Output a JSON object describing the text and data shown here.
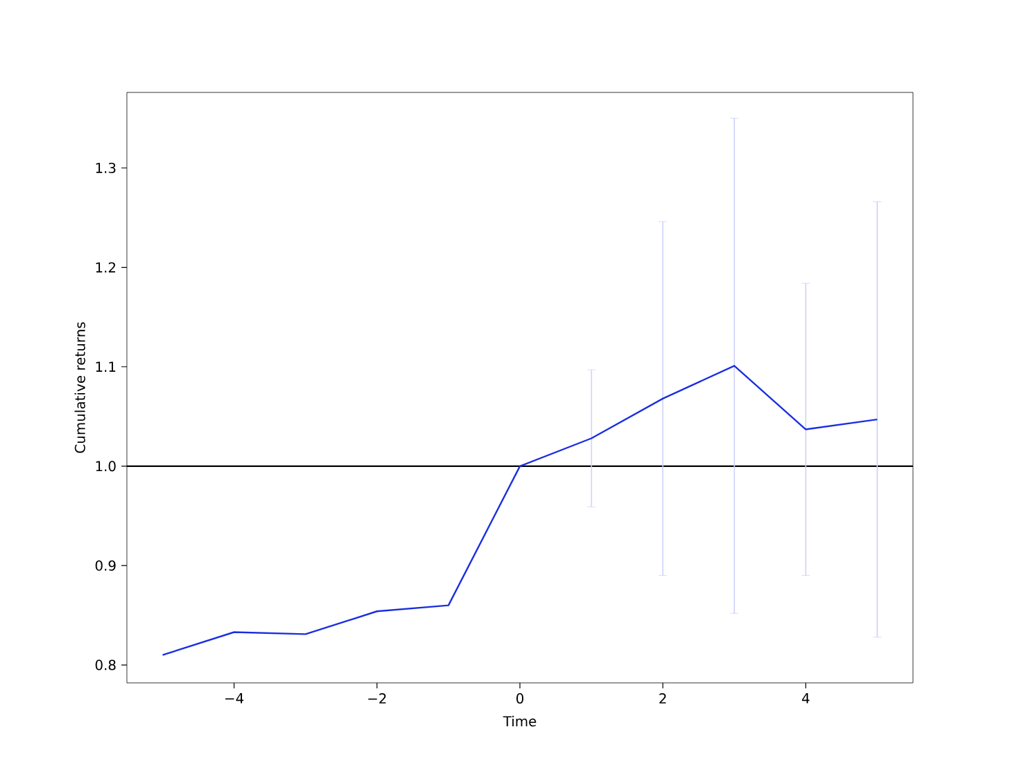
{
  "chart_data": {
    "type": "line",
    "xlabel": "Time",
    "ylabel": "Cumulative returns",
    "x": [
      -5,
      -4,
      -3,
      -2,
      -1,
      0,
      1,
      2,
      3,
      4,
      5
    ],
    "series": [
      {
        "color": "#1a2ee0",
        "values": [
          0.81,
          0.833,
          0.831,
          0.854,
          0.86,
          1.0,
          1.028,
          1.068,
          1.101,
          1.037,
          1.047
        ],
        "errors": [
          null,
          null,
          null,
          null,
          null,
          null,
          0.069,
          0.178,
          0.249,
          0.147,
          0.219
        ]
      }
    ],
    "ref_lines": [
      {
        "axis": "y",
        "value": 1.0,
        "color": "#000000"
      }
    ],
    "xlim": [
      -5.5,
      5.5
    ],
    "ylim": [
      0.782,
      1.376
    ],
    "xticks": [
      {
        "value": -4,
        "label": "−4"
      },
      {
        "value": -2,
        "label": "−2"
      },
      0,
      2,
      4
    ],
    "yticks": [
      {
        "value": 0.8,
        "label": "0.8"
      },
      {
        "value": 0.9,
        "label": "0.9"
      },
      {
        "value": 1.0,
        "label": "1.0"
      },
      {
        "value": 1.1,
        "label": "1.1"
      },
      {
        "value": 1.2,
        "label": "1.2"
      },
      {
        "value": 1.3,
        "label": "1.3"
      }
    ],
    "grid": false,
    "marker": "none",
    "line_style": "solid"
  }
}
